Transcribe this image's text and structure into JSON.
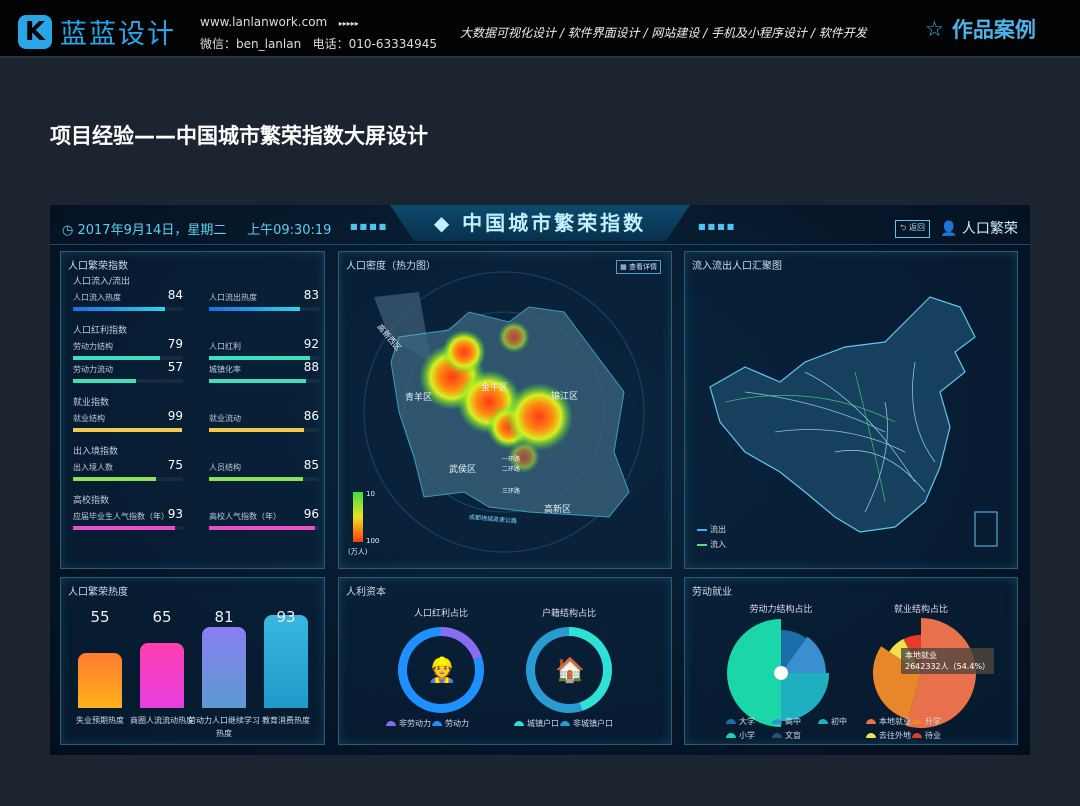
{
  "header": {
    "logo_mark": "K",
    "logo_text": "蓝蓝设计",
    "website": "www.lanlanwork.com",
    "arrows": "▸▸▸▸▸",
    "wechat": "微信：ben_lanlan",
    "phone": "电话：010-63334945",
    "services": "大数据可视化设计 / 软件界面设计 / 网站建设 / 手机及小程序设计 / 软件开发",
    "works": "作品案例",
    "works_icon": "star-outline-icon"
  },
  "page_title": "项目经验——中国城市繁荣指数大屏设计",
  "dashboard": {
    "date": "2017年9月14日，星期二",
    "time": "上午09:30:19",
    "title": "中国城市繁荣指数",
    "back": "返回",
    "section": "人口繁荣",
    "dots": "■■■■",
    "index_panel": {
      "title": "人口繁荣指数",
      "groups": [
        {
          "name": "人口流入/流出",
          "items": [
            {
              "label": "人口流入热度",
              "value": 84,
              "color": "#2fd3f0"
            },
            {
              "label": "人口流出热度",
              "value": 83,
              "color": "#2fd3f0"
            }
          ]
        },
        {
          "name": "人口红利指数",
          "items": [
            {
              "label": "劳动力结构",
              "value": 79,
              "color": "#3fe0b8"
            },
            {
              "label": "人口红利",
              "value": 92,
              "color": "#3fe0b8"
            },
            {
              "label": "劳动力流动",
              "value": 57,
              "color": "#3fe0b8"
            },
            {
              "label": "城镇化率",
              "value": 88,
              "color": "#3fe0b8"
            }
          ]
        },
        {
          "name": "就业指数",
          "items": [
            {
              "label": "就业结构",
              "value": 99,
              "color": "#f2c94c"
            },
            {
              "label": "就业流动",
              "value": 86,
              "color": "#f2c94c"
            }
          ]
        },
        {
          "name": "出入境指数",
          "items": [
            {
              "label": "出入境人数",
              "value": 75,
              "color": "#8fe05a"
            },
            {
              "label": "人员结构",
              "value": 85,
              "color": "#8fe05a"
            }
          ]
        },
        {
          "name": "高校指数",
          "items": [
            {
              "label": "应届毕业生人气指数（年）",
              "value": 93,
              "color": "#e84fc8"
            },
            {
              "label": "高校人气指数（年）",
              "value": 96,
              "color": "#e84fc8"
            }
          ]
        }
      ]
    },
    "density_panel": {
      "title": "人口密度（热力图）",
      "detail_button": "查看详情",
      "districts": [
        "高新西区",
        "青羊区",
        "金牛区",
        "锦江区",
        "武侯区",
        "高新区"
      ],
      "roads": [
        "一环路",
        "二环路",
        "三环路",
        "成都绕城高速公路"
      ],
      "legend_min": "10",
      "legend_max": "100",
      "unit": "(万人)"
    },
    "flow_panel": {
      "title": "流入流出人口汇聚图",
      "legend": [
        {
          "label": "流出",
          "color": "#3ab0ff"
        },
        {
          "label": "流入",
          "color": "#4be07a"
        }
      ]
    },
    "heat_panel": {
      "title": "人口繁荣热度",
      "bars": [
        {
          "value": 55,
          "label": "失业预期热度",
          "colors": [
            "#ff7a2f",
            "#ffb21c"
          ]
        },
        {
          "value": 65,
          "label": "商圈人流流动热度",
          "colors": [
            "#ff3fb0",
            "#e63fe0"
          ]
        },
        {
          "value": 81,
          "label": "劳动力人口继续学习热度",
          "colors": [
            "#8a7ef0",
            "#5a9ad0"
          ]
        },
        {
          "value": 93,
          "label": "教育消费热度",
          "colors": [
            "#38b8e0",
            "#1e9ac8"
          ]
        }
      ]
    },
    "capital_panel": {
      "title": "人利资本",
      "charts": [
        {
          "title": "人口红利占比",
          "icon": "worker-icon",
          "segments": [
            {
              "label": "非劳动力",
              "value": 20,
              "color": "#8a6cf0"
            },
            {
              "label": "劳动力",
              "value": 80,
              "color": "#1e90ff"
            }
          ]
        },
        {
          "title": "户籍结构占比",
          "icon": "house-icon",
          "segments": [
            {
              "label": "城镇户口",
              "value": 45,
              "color": "#2de0d8"
            },
            {
              "label": "非城镇户口",
              "value": 55,
              "color": "#2a9bd0"
            }
          ]
        }
      ]
    },
    "labor_panel": {
      "title": "劳动就业",
      "charts": [
        {
          "title": "劳动力结构占比",
          "segments": [
            {
              "label": "大学",
              "value": 10,
              "color": "#1a6fa8"
            },
            {
              "label": "高中",
              "value": 15,
              "color": "#3a8fd0"
            },
            {
              "label": "初中",
              "value": 25,
              "color": "#1fb0c0"
            },
            {
              "label": "小学",
              "value": 50,
              "color": "#1ad6a8"
            },
            {
              "label": "文盲",
              "value": 0,
              "color": "#2d4f70"
            }
          ]
        },
        {
          "title": "就业结构占比",
          "segments": [
            {
              "label": "本地就业",
              "value": 54.4,
              "color": "#e8704a"
            },
            {
              "label": "升学",
              "value": 30,
              "color": "#e8862a"
            },
            {
              "label": "去往外地",
              "value": 8,
              "color": "#f2e04a"
            },
            {
              "label": "待业",
              "value": 7.6,
              "color": "#e83a2a"
            }
          ],
          "tooltip_title": "本地就业",
          "tooltip_value": "2642332人（54.4%）"
        }
      ]
    }
  }
}
